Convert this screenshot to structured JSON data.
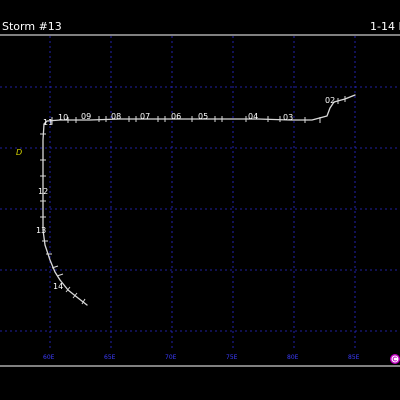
{
  "header": {
    "title": "Storm #13",
    "date_range": "1-14 F"
  },
  "map": {
    "axis": {
      "longitude_labels": [
        "60E",
        "65E",
        "70E",
        "75E",
        "80E",
        "85E"
      ]
    },
    "track_labels": [
      "02",
      "03",
      "04",
      "05",
      "06",
      "07",
      "08",
      "09",
      "10",
      "11",
      "12",
      "13",
      "14"
    ],
    "marker_symbol": "D",
    "marker_color": "#d6d600",
    "track_color": "#d8d8d8",
    "grid_color": "#2b2bd6",
    "logo_icon": "copyright-circle-icon",
    "logo_color": "#c000c0"
  }
}
